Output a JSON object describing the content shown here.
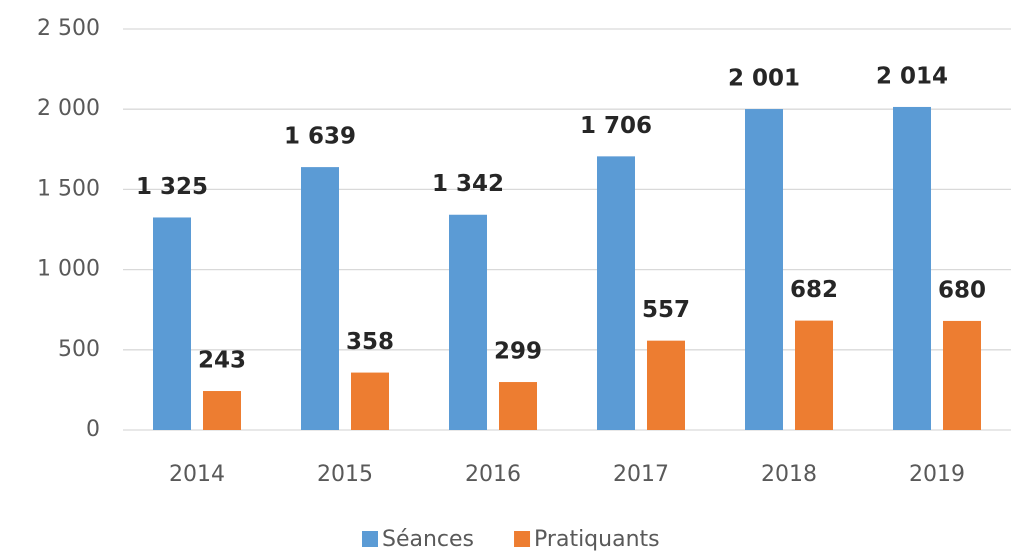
{
  "chart_data": {
    "type": "bar",
    "categories": [
      "2014",
      "2015",
      "2016",
      "2017",
      "2018",
      "2019"
    ],
    "series": [
      {
        "name": "Séances",
        "color": "#5b9bd5",
        "values": [
          1325,
          1639,
          1342,
          1706,
          2001,
          2014
        ],
        "value_labels": [
          "1 325",
          "1 639",
          "1 342",
          "1 706",
          "2 001",
          "2 014"
        ]
      },
      {
        "name": "Pratiquants",
        "color": "#ed7d31",
        "values": [
          243,
          358,
          299,
          557,
          682,
          680
        ]
      }
    ],
    "ylim": [
      0,
      2500
    ],
    "yticks": [
      {
        "value": 0,
        "label": "0"
      },
      {
        "value": 500,
        "label": "500"
      },
      {
        "value": 1000,
        "label": "1 000"
      },
      {
        "value": 1500,
        "label": "1 500"
      },
      {
        "value": 2000,
        "label": "2 000"
      },
      {
        "value": 2500,
        "label": "2 500"
      }
    ],
    "grid": true,
    "legend": "bottom"
  }
}
